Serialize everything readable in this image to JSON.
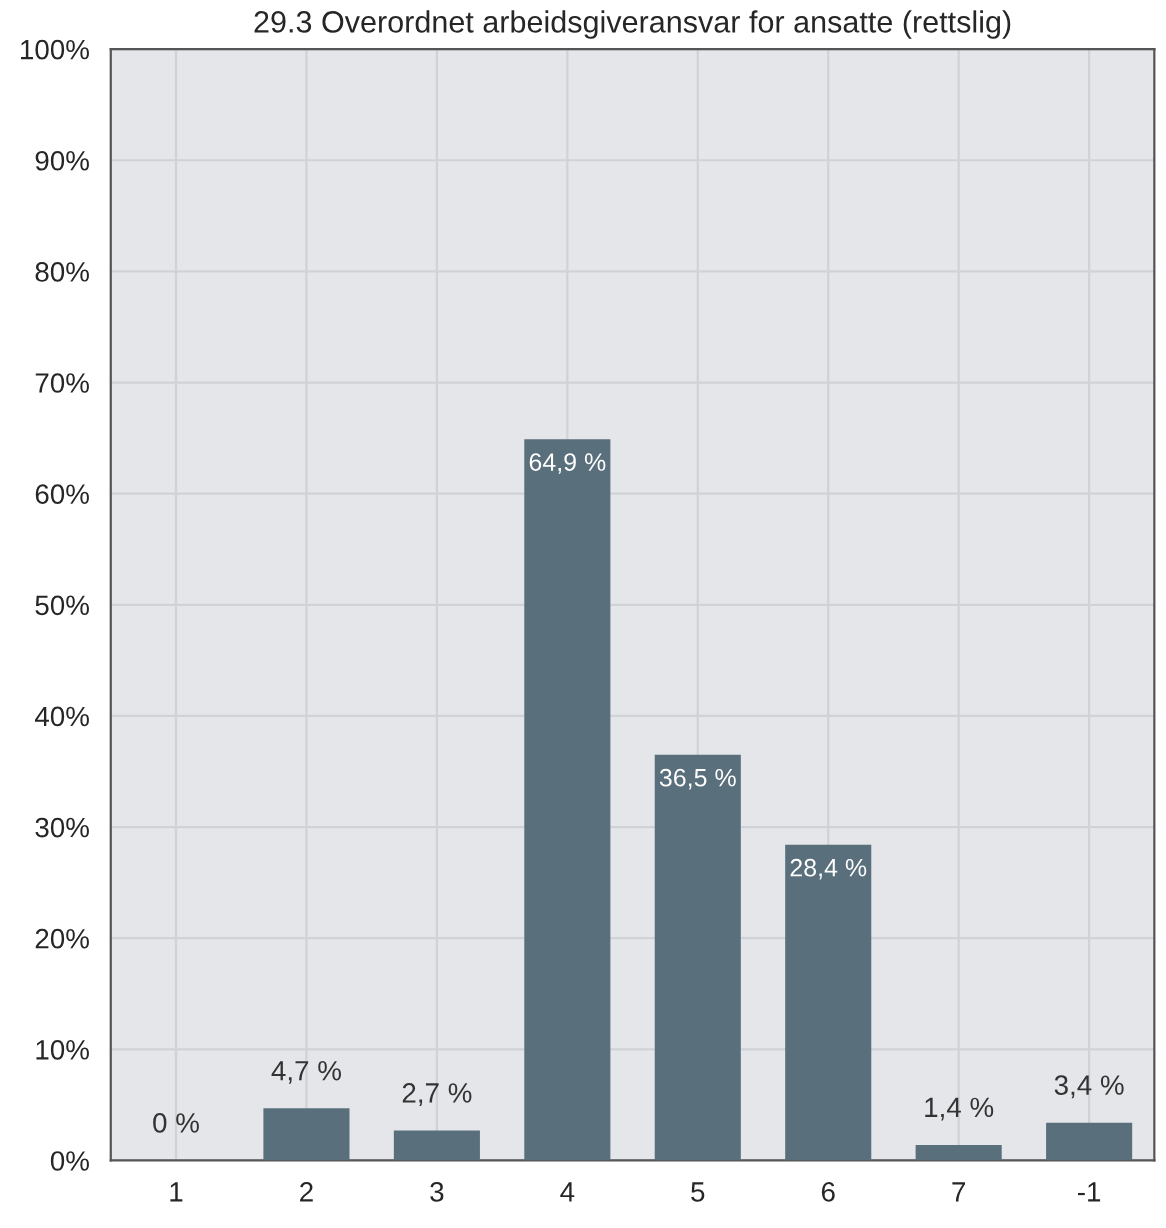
{
  "chart_data": {
    "type": "bar",
    "title": "29.3 Overordnet arbeidsgiveransvar for ansatte (rettslig)",
    "categories": [
      "1",
      "2",
      "3",
      "4",
      "5",
      "6",
      "7",
      "-1"
    ],
    "values": [
      0,
      4.7,
      2.7,
      64.9,
      36.5,
      28.4,
      1.4,
      3.4
    ],
    "value_labels": [
      "0 %",
      "4,7 %",
      "2,7 %",
      "64,9 %",
      "36,5 %",
      "28,4 %",
      "1,4 %",
      "3,4 %"
    ],
    "color": "#5a6f7c",
    "ylim": [
      0,
      100
    ],
    "yticks": [
      {
        "value": 0,
        "label": "0%"
      },
      {
        "value": 10,
        "label": "10%"
      },
      {
        "value": 20,
        "label": "20%"
      },
      {
        "value": 30,
        "label": "30%"
      },
      {
        "value": 40,
        "label": "40%"
      },
      {
        "value": 50,
        "label": "50%"
      },
      {
        "value": 60,
        "label": "60%"
      },
      {
        "value": 70,
        "label": "70%"
      },
      {
        "value": 80,
        "label": "80%"
      },
      {
        "value": 90,
        "label": "90%"
      },
      {
        "value": 100,
        "label": "100%"
      }
    ],
    "grid": true
  }
}
